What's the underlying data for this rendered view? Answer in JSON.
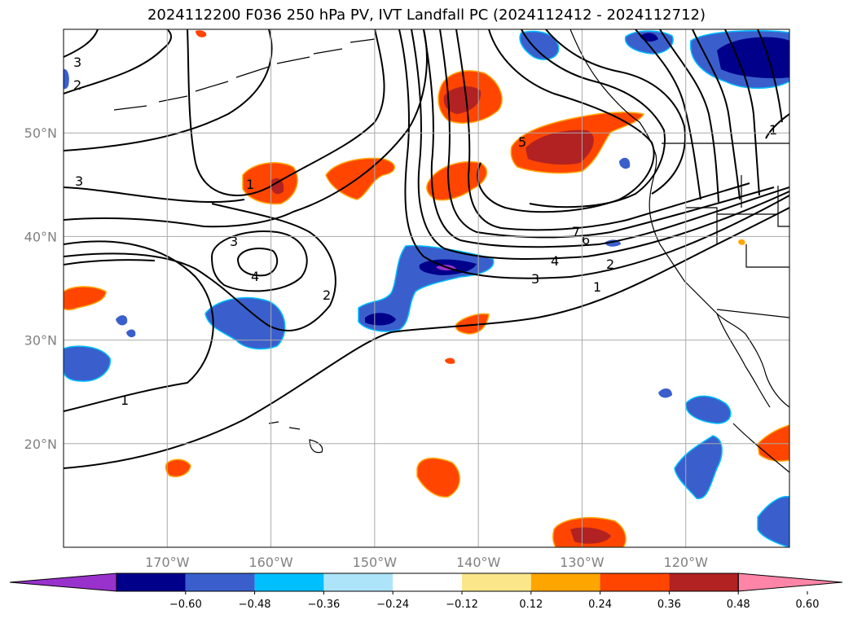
{
  "title": "2024112200 F036 250 hPa PV, IVT Landfall PC (2024112412 - 2024112712)",
  "map": {
    "projection": "PlateCarree",
    "extent": {
      "lon": [
        -180,
        -110
      ],
      "lat": [
        10,
        60
      ]
    },
    "longitude_ticks": [
      "170°W",
      "160°W",
      "150°W",
      "140°W",
      "130°W",
      "120°W"
    ],
    "latitude_ticks": [
      "50°N",
      "40°N",
      "30°N",
      "20°N"
    ],
    "gridlines": true,
    "contour_labels": [
      "3",
      "2",
      "3",
      "1",
      "5",
      "3",
      "4",
      "2",
      "7",
      "6",
      "4",
      "3",
      "2",
      "1",
      "1",
      "1"
    ]
  },
  "colorbar": {
    "extend": "both",
    "tick_labels": [
      "−0.60",
      "−0.48",
      "−0.36",
      "−0.24",
      "−0.12",
      "0.12",
      "0.24",
      "0.36",
      "0.48",
      "0.60"
    ],
    "colors": [
      "#9932cc",
      "#00008b",
      "#3a5fcd",
      "#00bfff",
      "#aee4fa",
      "#ffffff",
      "#fce68a",
      "#ffa500",
      "#ff4500",
      "#b22222",
      "#ff85a8"
    ]
  }
}
